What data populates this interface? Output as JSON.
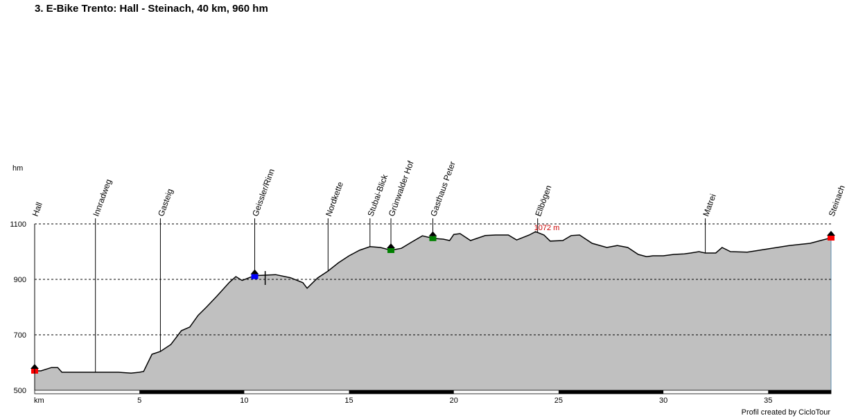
{
  "title": "3. E-Bike Trento: Hall - Steinach, 40 km, 960 hm",
  "credit": "Profil created by CicloTour",
  "colors": {
    "fill": "#c0c0c0",
    "line": "#000000",
    "max_label": "#cc0000",
    "end_line": "#5f8fb0",
    "marker_red": "#ff0000",
    "marker_blue": "#0000ff",
    "marker_green": "#008000"
  },
  "chart_data": {
    "type": "area",
    "y_unit_label": "hm",
    "x_unit_label": "km",
    "xlim": [
      0,
      38
    ],
    "ylim": [
      500,
      1100
    ],
    "x_ticks": [
      5,
      10,
      15,
      20,
      25,
      30,
      35
    ],
    "y_ticks": [
      500,
      700,
      900,
      1100
    ],
    "grid": "horizontal dashed at 700, 900, 1100",
    "max_label": "1072 m",
    "max_point": {
      "x": 23.9,
      "y": 1072
    },
    "profile": [
      [
        0,
        570
      ],
      [
        0.3,
        570
      ],
      [
        0.8,
        582
      ],
      [
        1.1,
        582
      ],
      [
        1.3,
        565
      ],
      [
        2,
        565
      ],
      [
        4,
        565
      ],
      [
        4.6,
        562
      ],
      [
        5,
        565
      ],
      [
        5.2,
        568
      ],
      [
        5.6,
        630
      ],
      [
        6,
        640
      ],
      [
        6.5,
        665
      ],
      [
        7,
        715
      ],
      [
        7.4,
        728
      ],
      [
        7.8,
        770
      ],
      [
        8.2,
        800
      ],
      [
        8.7,
        840
      ],
      [
        9.3,
        890
      ],
      [
        9.6,
        910
      ],
      [
        9.9,
        896
      ],
      [
        10.3,
        908
      ],
      [
        10.7,
        914
      ],
      [
        11.5,
        917
      ],
      [
        12.2,
        906
      ],
      [
        12.8,
        888
      ],
      [
        13,
        868
      ],
      [
        13.5,
        905
      ],
      [
        14,
        930
      ],
      [
        14.5,
        960
      ],
      [
        15,
        985
      ],
      [
        15.5,
        1005
      ],
      [
        16,
        1018
      ],
      [
        16.5,
        1015
      ],
      [
        17,
        1005
      ],
      [
        17.5,
        1012
      ],
      [
        18,
        1035
      ],
      [
        18.5,
        1057
      ],
      [
        19,
        1048
      ],
      [
        19.5,
        1045
      ],
      [
        19.8,
        1040
      ],
      [
        20,
        1062
      ],
      [
        20.3,
        1065
      ],
      [
        20.8,
        1040
      ],
      [
        21.5,
        1058
      ],
      [
        22,
        1060
      ],
      [
        22.6,
        1060
      ],
      [
        23,
        1042
      ],
      [
        23.6,
        1060
      ],
      [
        23.9,
        1072
      ],
      [
        24.3,
        1060
      ],
      [
        24.6,
        1038
      ],
      [
        25.2,
        1040
      ],
      [
        25.6,
        1058
      ],
      [
        26,
        1060
      ],
      [
        26.6,
        1030
      ],
      [
        27.3,
        1015
      ],
      [
        27.8,
        1022
      ],
      [
        28.3,
        1015
      ],
      [
        28.8,
        990
      ],
      [
        29.2,
        982
      ],
      [
        29.5,
        985
      ],
      [
        30,
        985
      ],
      [
        30.5,
        990
      ],
      [
        31,
        992
      ],
      [
        31.3,
        995
      ],
      [
        31.7,
        1000
      ],
      [
        32,
        995
      ],
      [
        32.5,
        995
      ],
      [
        32.8,
        1015
      ],
      [
        33.2,
        1000
      ],
      [
        34,
        998
      ],
      [
        35,
        1010
      ],
      [
        36,
        1022
      ],
      [
        37,
        1030
      ],
      [
        38,
        1050
      ]
    ],
    "waypoints": [
      {
        "name": "Hall",
        "x": 0,
        "marker": "red"
      },
      {
        "name": "Innradweg",
        "x": 2.9,
        "marker": ""
      },
      {
        "name": "Gasteig",
        "x": 6,
        "marker": ""
      },
      {
        "name": "Geissler/Rinn",
        "x": 10.5,
        "marker": "blue"
      },
      {
        "name": "Nordkette",
        "x": 14,
        "marker": ""
      },
      {
        "name": "Stubai-Blick",
        "x": 16,
        "marker": ""
      },
      {
        "name": "Grünwalder Hof",
        "x": 17,
        "marker": "green"
      },
      {
        "name": "Gasthaus Peter",
        "x": 19,
        "marker": "green"
      },
      {
        "name": "Ellbögen",
        "x": 24,
        "marker": ""
      },
      {
        "name": "Matrei",
        "x": 32,
        "marker": ""
      },
      {
        "name": "Steinach",
        "x": 38,
        "marker": "red"
      }
    ]
  }
}
